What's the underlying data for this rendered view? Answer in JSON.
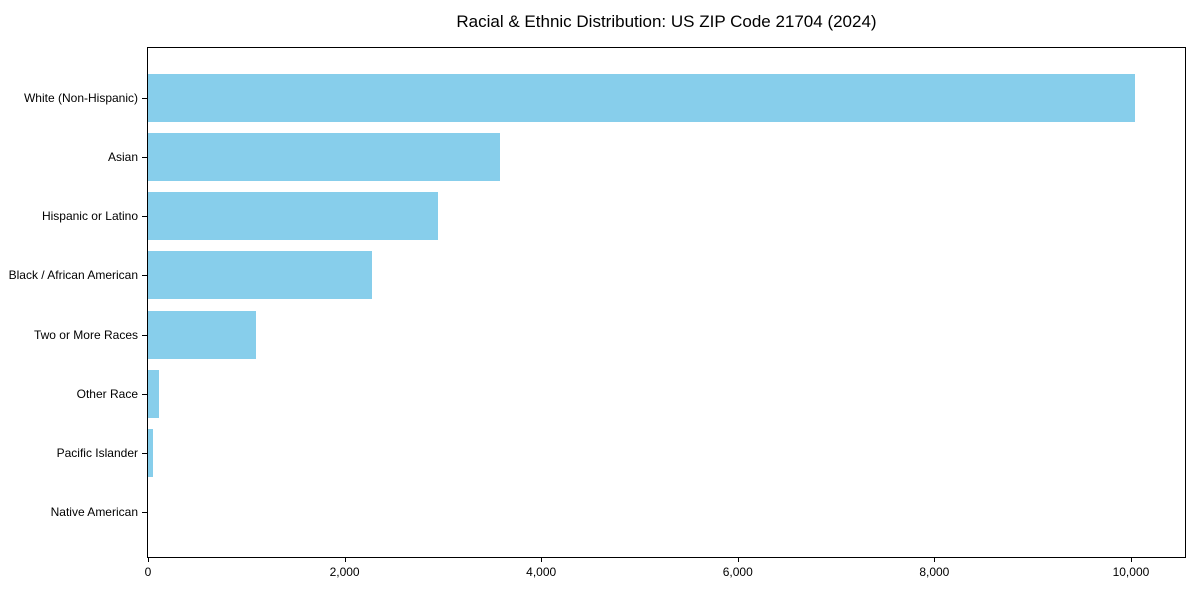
{
  "chart_data": {
    "type": "bar",
    "orientation": "horizontal",
    "title": "Racial & Ethnic Distribution: US ZIP Code 21704 (2024)",
    "categories": [
      "White (Non-Hispanic)",
      "Asian",
      "Hispanic or Latino",
      "Black / African American",
      "Two or More Races",
      "Other Race",
      "Pacific Islander",
      "Native American"
    ],
    "values": [
      10040,
      3580,
      2950,
      2280,
      1100,
      110,
      50,
      0
    ],
    "xlabel": "",
    "ylabel": "",
    "xlim": [
      0,
      10550
    ],
    "x_ticks": [
      0,
      2000,
      4000,
      6000,
      8000,
      10000
    ],
    "x_tick_labels": [
      "0",
      "2,000",
      "4,000",
      "6,000",
      "8,000",
      "10,000"
    ],
    "bar_color": "#87CEEB",
    "axis_color": "#000000",
    "background_color": "#ffffff",
    "grid": false,
    "legend": null
  }
}
